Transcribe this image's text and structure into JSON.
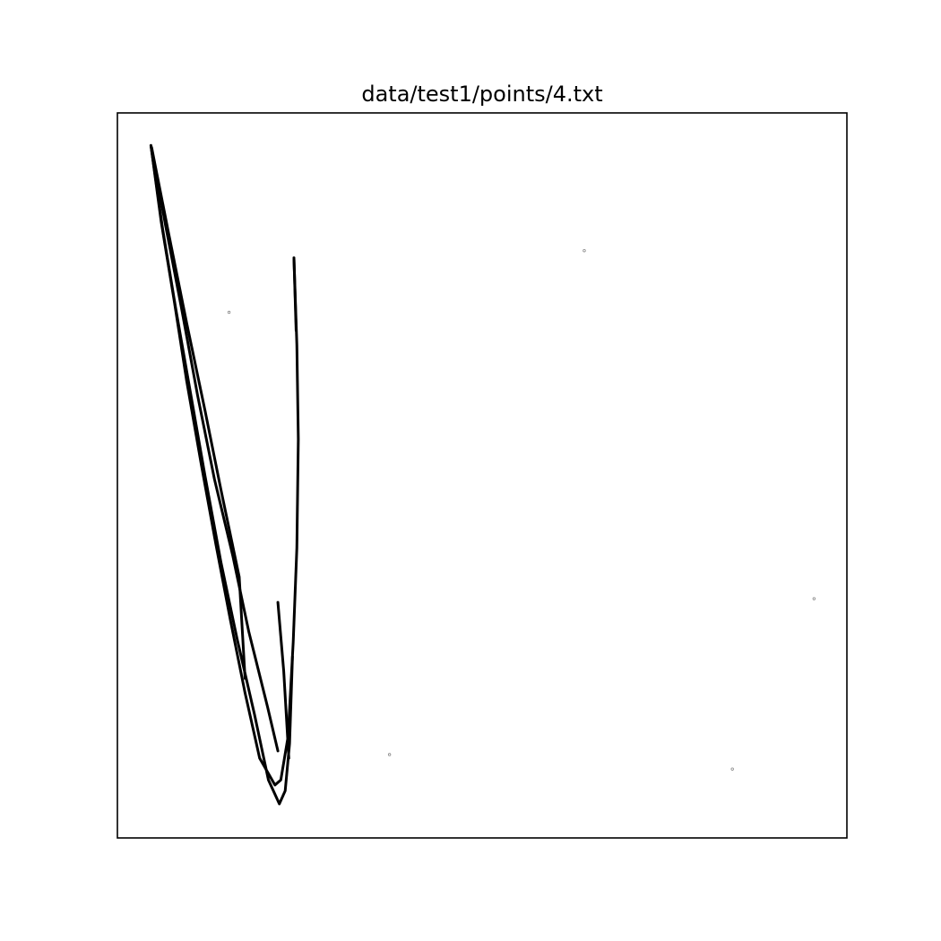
{
  "chart_data": {
    "type": "scatter",
    "title": "data/test1/points/4.txt",
    "xlabel": "",
    "ylabel": "",
    "xlim": [
      0,
      100
    ],
    "ylim": [
      0,
      100
    ],
    "grid": false,
    "show_ticks": false,
    "series": [
      {
        "kind": "dense-curve",
        "color": "#000000",
        "curves": [
          [
            [
              4.6,
              95.5
            ],
            [
              6.0,
              85.0
            ],
            [
              7.8,
              74.0
            ],
            [
              9.5,
              63.0
            ],
            [
              11.5,
              51.5
            ],
            [
              13.5,
              40.5
            ],
            [
              15.5,
              30.0
            ],
            [
              17.5,
              20.0
            ],
            [
              19.5,
              11.0
            ],
            [
              21.6,
              7.3
            ],
            [
              22.4,
              8.0
            ],
            [
              23.4,
              14.0
            ],
            [
              24.1,
              27.0
            ],
            [
              24.6,
              40.0
            ],
            [
              24.8,
              55.0
            ],
            [
              24.6,
              68.0
            ],
            [
              24.2,
              80.0
            ]
          ],
          [
            [
              4.6,
              95.5
            ],
            [
              6.2,
              84.0
            ],
            [
              8.0,
              73.0
            ],
            [
              10.0,
              61.5
            ],
            [
              12.0,
              50.0
            ],
            [
              14.2,
              38.0
            ],
            [
              16.4,
              27.5
            ],
            [
              18.8,
              17.0
            ],
            [
              20.7,
              8.0
            ],
            [
              22.2,
              4.7
            ],
            [
              23.0,
              6.5
            ],
            [
              23.6,
              13.0
            ],
            [
              24.0,
              25.0
            ]
          ],
          [
            [
              4.6,
              95.5
            ],
            [
              6.6,
              84.5
            ],
            [
              8.8,
              73.0
            ],
            [
              11.0,
              61.0
            ],
            [
              13.3,
              49.5
            ],
            [
              15.8,
              39.0
            ],
            [
              18.0,
              28.5
            ],
            [
              20.6,
              18.0
            ],
            [
              22.0,
              12.0
            ]
          ],
          [
            [
              4.7,
              95.2
            ],
            [
              7.0,
              83.5
            ],
            [
              9.5,
              71.0
            ],
            [
              12.0,
              59.0
            ],
            [
              14.2,
              48.0
            ],
            [
              16.7,
              36.0
            ],
            [
              17.5,
              22.0
            ]
          ],
          [
            [
              22.0,
              32.5
            ],
            [
              22.8,
              23.0
            ],
            [
              23.5,
              11.0
            ]
          ],
          [
            [
              24.2,
              80.0
            ],
            [
              24.5,
              70.0
            ]
          ]
        ]
      },
      {
        "kind": "outliers",
        "color": "#888888",
        "points": [
          [
            15.3,
            72.5
          ],
          [
            64.0,
            81.0
          ],
          [
            95.5,
            33.0
          ],
          [
            37.3,
            11.5
          ],
          [
            84.3,
            9.5
          ]
        ]
      }
    ]
  }
}
